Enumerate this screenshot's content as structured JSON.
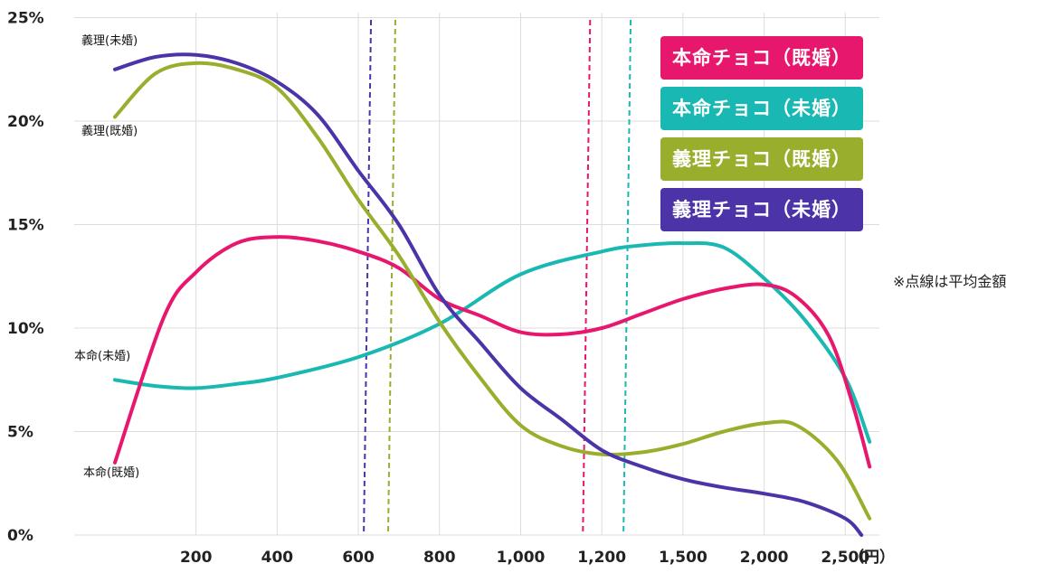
{
  "chart_data": {
    "type": "line",
    "categories": [
      "",
      "200",
      "400",
      "600",
      "800",
      "1,000",
      "1,200",
      "1,500",
      "2,000",
      "2,500"
    ],
    "x_unit": "（円）",
    "y_ticks": [
      "0%",
      "5%",
      "10%",
      "15%",
      "20%",
      "25%"
    ],
    "ylim": [
      0,
      25
    ],
    "grid": true,
    "legend_position": "top-right",
    "series": [
      {
        "name": "本命チョコ（既婚）",
        "color": "#e8176e",
        "points": [
          [
            0,
            3.5
          ],
          [
            0.6,
            10.5
          ],
          [
            1,
            12.7
          ],
          [
            1.5,
            14.1
          ],
          [
            2,
            14.4
          ],
          [
            2.5,
            14.2
          ],
          [
            3,
            13.7
          ],
          [
            3.5,
            12.9
          ],
          [
            4,
            11.4
          ],
          [
            4.5,
            10.6
          ],
          [
            5,
            9.8
          ],
          [
            5.5,
            9.7
          ],
          [
            6,
            10.0
          ],
          [
            6.5,
            10.7
          ],
          [
            7,
            11.4
          ],
          [
            7.5,
            11.9
          ],
          [
            8,
            12.1
          ],
          [
            8.4,
            11.5
          ],
          [
            8.8,
            9.6
          ],
          [
            9.1,
            6.2
          ],
          [
            9.3,
            3.3
          ]
        ],
        "mean_x": 5.8
      },
      {
        "name": "本命チョコ（未婚）",
        "color": "#1ab8b2",
        "points": [
          [
            0,
            7.5
          ],
          [
            0.5,
            7.2
          ],
          [
            1,
            7.1
          ],
          [
            1.5,
            7.3
          ],
          [
            2,
            7.6
          ],
          [
            3,
            8.6
          ],
          [
            4,
            10.2
          ],
          [
            5,
            12.6
          ],
          [
            6,
            13.7
          ],
          [
            6.5,
            14.0
          ],
          [
            7,
            14.1
          ],
          [
            7.5,
            13.9
          ],
          [
            8,
            12.4
          ],
          [
            8.5,
            10.4
          ],
          [
            9,
            7.6
          ],
          [
            9.3,
            4.5
          ]
        ],
        "mean_x": 6.3
      },
      {
        "name": "義理チョコ（既婚）",
        "color": "#9aae2e",
        "points": [
          [
            0,
            20.2
          ],
          [
            0.5,
            22.3
          ],
          [
            1,
            22.8
          ],
          [
            1.5,
            22.5
          ],
          [
            2,
            21.6
          ],
          [
            2.5,
            19.2
          ],
          [
            3,
            16.2
          ],
          [
            3.5,
            13.5
          ],
          [
            4,
            10.3
          ],
          [
            4.5,
            7.6
          ],
          [
            5,
            5.3
          ],
          [
            5.5,
            4.3
          ],
          [
            6,
            3.9
          ],
          [
            6.5,
            4.0
          ],
          [
            7,
            4.4
          ],
          [
            7.5,
            5.0
          ],
          [
            8,
            5.4
          ],
          [
            8.4,
            5.3
          ],
          [
            8.9,
            3.6
          ],
          [
            9.3,
            0.8
          ]
        ],
        "mean_x": 3.4
      },
      {
        "name": "義理チョコ（未婚）",
        "color": "#4c34a8",
        "points": [
          [
            0,
            22.5
          ],
          [
            0.5,
            23.1
          ],
          [
            1,
            23.2
          ],
          [
            1.5,
            22.8
          ],
          [
            2,
            21.9
          ],
          [
            2.5,
            20.3
          ],
          [
            3,
            17.6
          ],
          [
            3.5,
            15.0
          ],
          [
            4,
            11.6
          ],
          [
            4.5,
            9.3
          ],
          [
            5,
            7.1
          ],
          [
            5.5,
            5.6
          ],
          [
            6,
            4.1
          ],
          [
            6.5,
            3.3
          ],
          [
            7,
            2.7
          ],
          [
            7.5,
            2.3
          ],
          [
            8,
            2.0
          ],
          [
            8.5,
            1.6
          ],
          [
            9,
            0.8
          ],
          [
            9.2,
            0.0
          ]
        ],
        "mean_x": 3.1
      }
    ],
    "annotations": [
      {
        "text": "義理(未婚)",
        "series": 3
      },
      {
        "text": "義理(既婚)",
        "series": 2
      },
      {
        "text": "本命(未婚)",
        "series": 1
      },
      {
        "text": "本命(既婚)",
        "series": 0
      }
    ]
  },
  "legend": [
    {
      "label": "本命チョコ（既婚）",
      "color": "#e8176e"
    },
    {
      "label": "本命チョコ（未婚）",
      "color": "#1ab8b2"
    },
    {
      "label": "義理チョコ（既婚）",
      "color": "#9aae2e"
    },
    {
      "label": "義理チョコ（未婚）",
      "color": "#4c34a8"
    }
  ],
  "note": "※点線は平均金額"
}
